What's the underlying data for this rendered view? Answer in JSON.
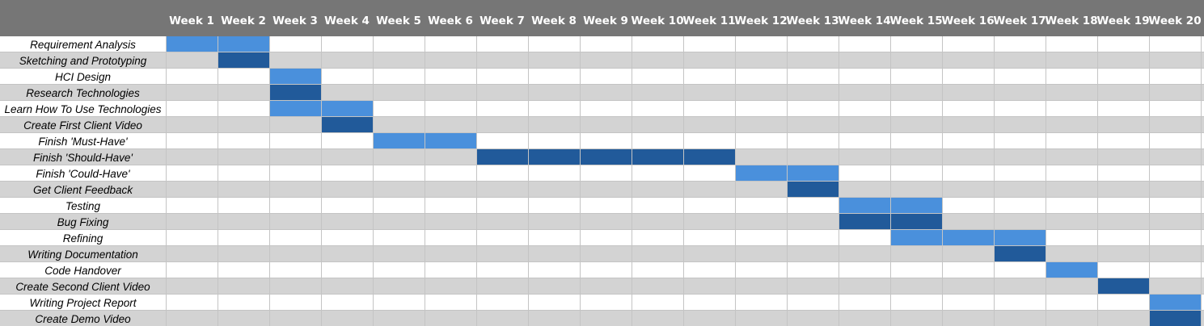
{
  "colors": {
    "header_bg": "#767676",
    "header_text": "#ffffff",
    "row_even": "#ffffff",
    "row_odd": "#d3d3d3",
    "gridline": "#c4c4c4",
    "bar_light": "#4a90dc",
    "bar_dark": "#215a9a"
  },
  "chart_data": {
    "type": "gantt",
    "title": "",
    "weeks": [
      "Week 1",
      "Week 2",
      "Week 3",
      "Week 4",
      "Week 5",
      "Week 6",
      "Week 7",
      "Week 8",
      "Week 9",
      "Week 10",
      "Week 11",
      "Week 12",
      "Week 13",
      "Week 14",
      "Week 15",
      "Week 16",
      "Week 17",
      "Week 18",
      "Week 19",
      "Week 20"
    ],
    "tasks": [
      {
        "name": "Requirement Analysis",
        "start_week": 1,
        "end_week": 2,
        "shade": "light"
      },
      {
        "name": "Sketching and Prototyping",
        "start_week": 2,
        "end_week": 2,
        "shade": "dark"
      },
      {
        "name": "HCI Design",
        "start_week": 3,
        "end_week": 3,
        "shade": "light"
      },
      {
        "name": "Research Technologies",
        "start_week": 3,
        "end_week": 3,
        "shade": "dark"
      },
      {
        "name": "Learn How To Use Technologies",
        "start_week": 3,
        "end_week": 4,
        "shade": "light"
      },
      {
        "name": "Create First Client Video",
        "start_week": 4,
        "end_week": 4,
        "shade": "dark"
      },
      {
        "name": "Finish 'Must-Have'",
        "start_week": 5,
        "end_week": 6,
        "shade": "light"
      },
      {
        "name": "Finish 'Should-Have'",
        "start_week": 7,
        "end_week": 11,
        "shade": "dark"
      },
      {
        "name": "Finish 'Could-Have'",
        "start_week": 12,
        "end_week": 13,
        "shade": "light"
      },
      {
        "name": "Get Client Feedback",
        "start_week": 13,
        "end_week": 13,
        "shade": "dark"
      },
      {
        "name": "Testing",
        "start_week": 14,
        "end_week": 15,
        "shade": "light"
      },
      {
        "name": "Bug Fixing",
        "start_week": 14,
        "end_week": 15,
        "shade": "dark"
      },
      {
        "name": "Refining",
        "start_week": 15,
        "end_week": 17,
        "shade": "light"
      },
      {
        "name": "Writing Documentation",
        "start_week": 17,
        "end_week": 17,
        "shade": "dark"
      },
      {
        "name": "Code Handover",
        "start_week": 18,
        "end_week": 18,
        "shade": "light"
      },
      {
        "name": "Create Second Client Video",
        "start_week": 19,
        "end_week": 19,
        "shade": "dark"
      },
      {
        "name": "Writing Project Report",
        "start_week": 20,
        "end_week": 20,
        "shade": "light"
      },
      {
        "name": "Create Demo Video",
        "start_week": 20,
        "end_week": 20,
        "shade": "dark"
      }
    ]
  }
}
